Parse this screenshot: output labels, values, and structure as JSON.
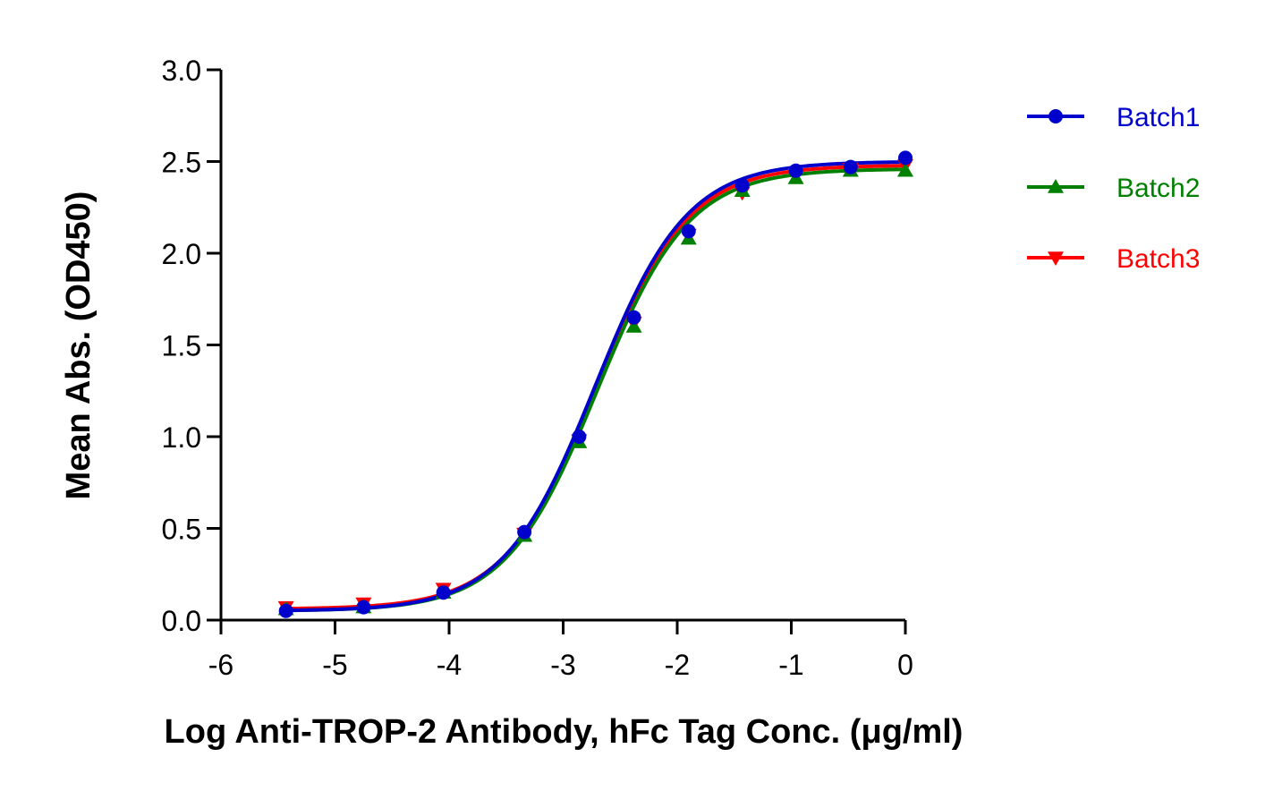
{
  "chart_data": {
    "type": "line",
    "title": "",
    "xlabel": "Log Anti-TROP-2 Antibody, hFc Tag Conc. (μg/ml)",
    "ylabel": "Mean Abs. (OD450)",
    "xlim": [
      -6,
      0
    ],
    "ylim": [
      0,
      3.0
    ],
    "x_ticks": [
      -6,
      -5,
      -4,
      -3,
      -2,
      -1,
      0
    ],
    "x_tick_labels": [
      "-6",
      "-5",
      "-4",
      "-3",
      "-2",
      "-1",
      "0"
    ],
    "y_ticks": [
      0,
      0.5,
      1.0,
      1.5,
      2.0,
      2.5,
      3.0
    ],
    "y_tick_labels": [
      "0.0",
      "0.5",
      "1.0",
      "1.5",
      "2.0",
      "2.5",
      "3.0"
    ],
    "grid": false,
    "legend_position": "top-right",
    "x": [
      -5.43,
      -4.75,
      -4.05,
      -3.34,
      -2.86,
      -2.38,
      -1.9,
      -1.43,
      -0.96,
      -0.48,
      0.0
    ],
    "series": [
      {
        "name": "Batch1",
        "color": "#0000cc",
        "marker": "circle",
        "values": [
          0.05,
          0.07,
          0.15,
          0.48,
          1.0,
          1.65,
          2.12,
          2.37,
          2.45,
          2.47,
          2.52
        ],
        "fit": {
          "bottom": 0.05,
          "top": 2.5,
          "logec50": -2.72,
          "hill": 1.08
        }
      },
      {
        "name": "Batch2",
        "color": "#008000",
        "marker": "triangle-up",
        "values": [
          0.06,
          0.07,
          0.15,
          0.46,
          0.97,
          1.6,
          2.08,
          2.34,
          2.41,
          2.45,
          2.45
        ],
        "fit": {
          "bottom": 0.05,
          "top": 2.46,
          "logec50": -2.7,
          "hill": 1.08
        }
      },
      {
        "name": "Batch3",
        "color": "#ff0000",
        "marker": "triangle-down",
        "values": [
          0.07,
          0.09,
          0.17,
          0.47,
          0.98,
          1.62,
          2.1,
          2.33,
          2.43,
          2.46,
          2.48
        ],
        "fit": {
          "bottom": 0.06,
          "top": 2.48,
          "logec50": -2.71,
          "hill": 1.08
        }
      }
    ]
  }
}
